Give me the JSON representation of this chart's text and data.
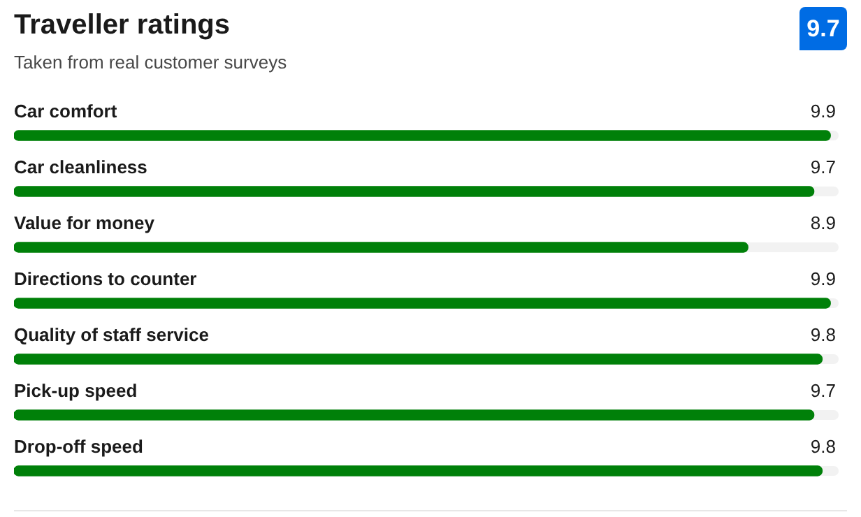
{
  "chart_data": {
    "type": "bar",
    "orientation": "horizontal",
    "title": "Traveller ratings",
    "subtitle": "Taken from real customer surveys",
    "categories": [
      "Car comfort",
      "Car cleanliness",
      "Value for money",
      "Directions to counter",
      "Quality of staff service",
      "Pick-up speed",
      "Drop-off speed"
    ],
    "values": [
      9.9,
      9.7,
      8.9,
      9.9,
      9.8,
      9.7,
      9.8
    ],
    "color": "#008009",
    "xlim": [
      0,
      10
    ],
    "data_labels": true,
    "tick_labels": false,
    "annotations": [
      "9.7"
    ]
  }
}
